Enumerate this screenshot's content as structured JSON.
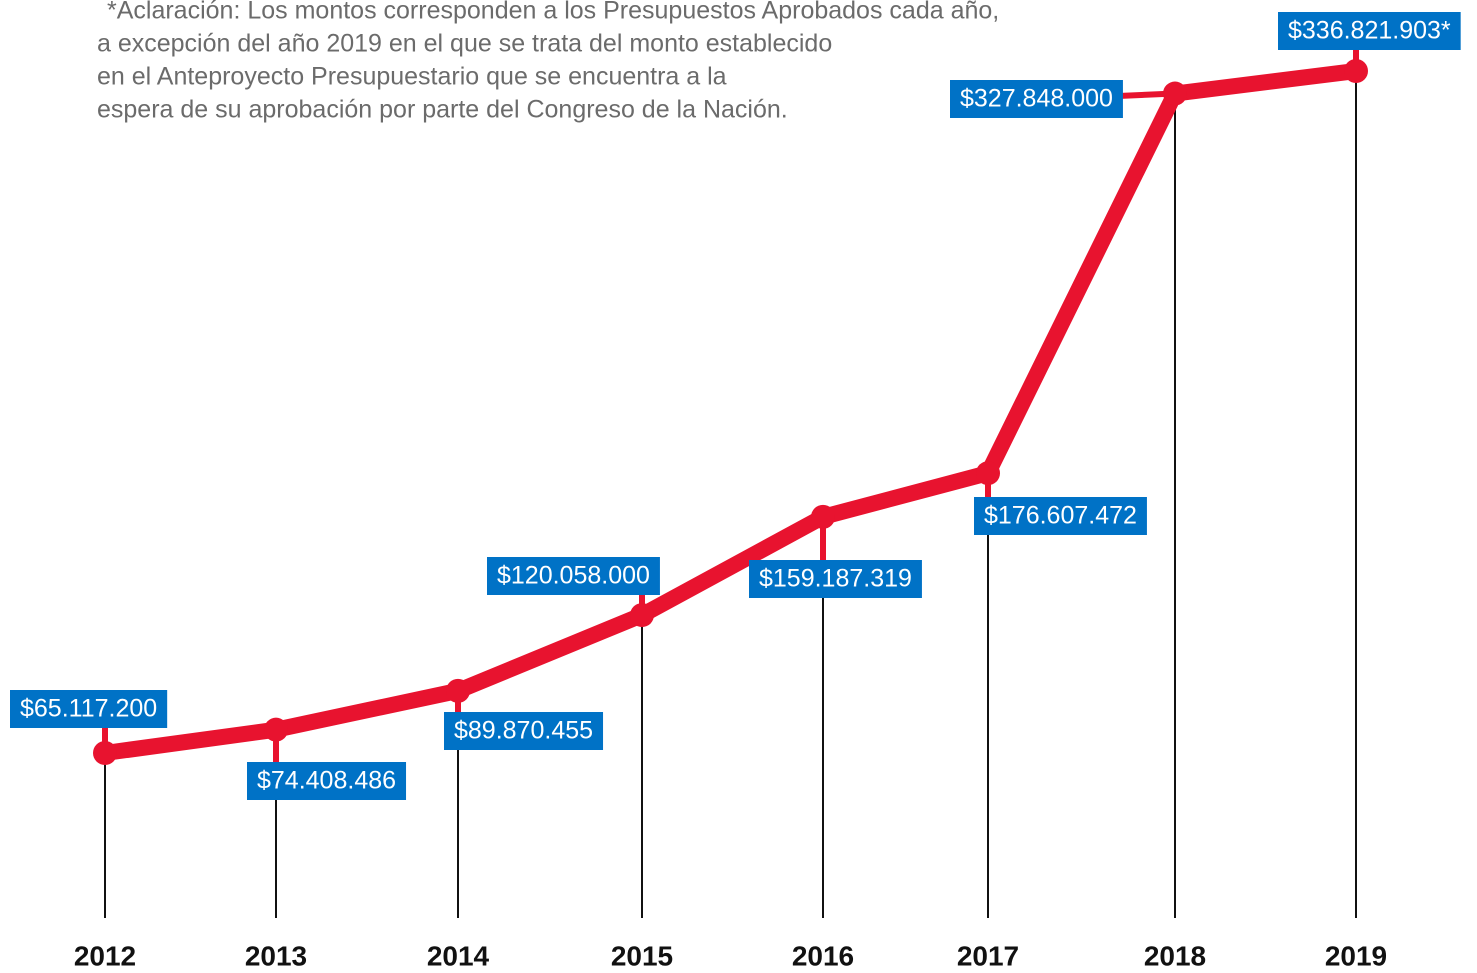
{
  "chart_data": {
    "type": "line",
    "note": [
      "*Aclaración: Los montos corresponden a los Presupuestos Aprobados cada año,",
      "a excepción del año 2019 en el que se trata del monto establecido",
      "en el Anteproyecto Presupuestario que se encuentra a la",
      "espera de su aprobación por parte del Congreso de la Nación."
    ],
    "categories": [
      "2012",
      "2013",
      "2014",
      "2015",
      "2016",
      "2017",
      "2018",
      "2019"
    ],
    "values": [
      65117200,
      74408486,
      89870455,
      120058000,
      159187319,
      176607472,
      327848000,
      336821903
    ],
    "value_labels": [
      "$65.117.200",
      "$74.408.486",
      "$89.870.455",
      "$120.058.000",
      "$159.187.319",
      "$176.607.472",
      "$327.848.000",
      "$336.821.903*"
    ],
    "color": "#e8132f",
    "label_color": "#0072c6"
  }
}
